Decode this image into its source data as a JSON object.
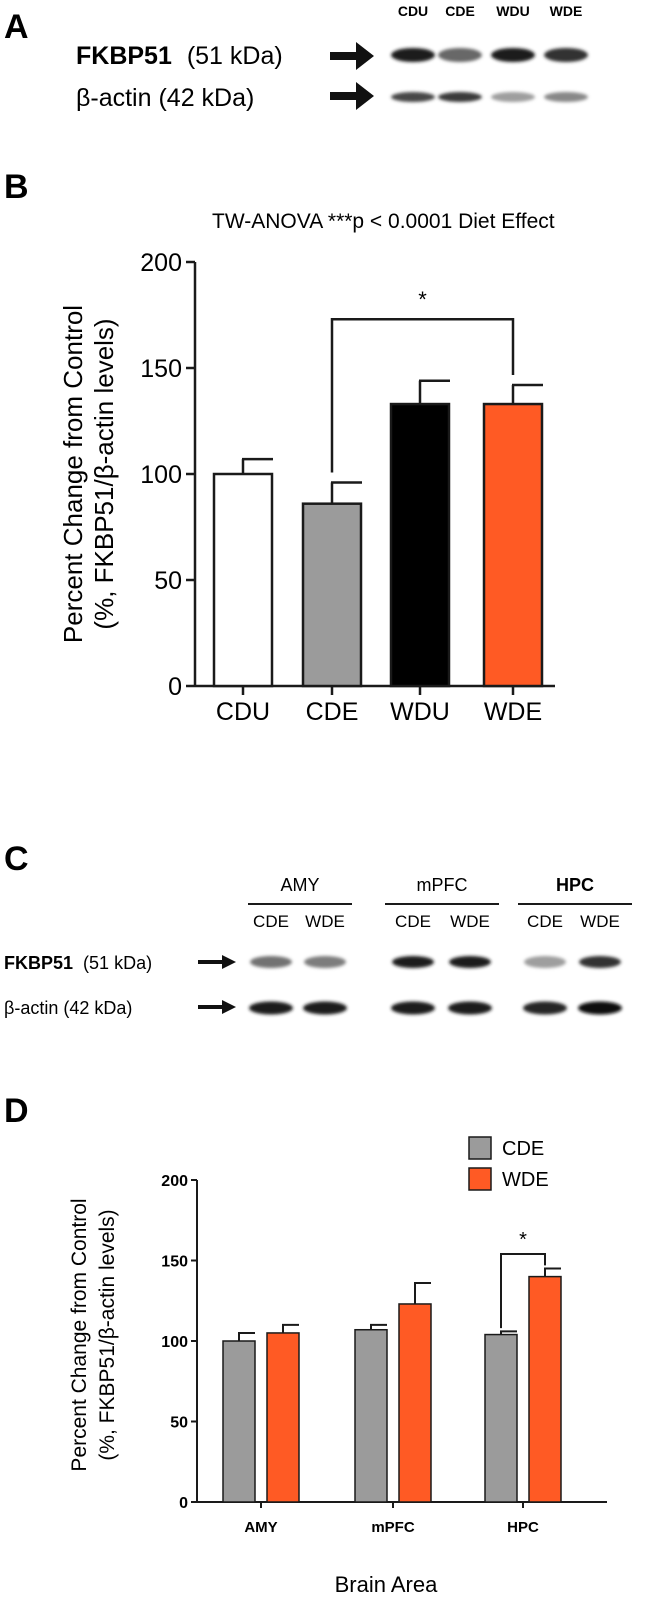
{
  "panels": {
    "A": {
      "letter": "A",
      "lanes": [
        "CDU",
        "CDE",
        "WDU",
        "WDE"
      ],
      "rows": [
        {
          "protein": "FKBP51",
          "size": "(51 kDa)",
          "bold": true,
          "band_intensity": [
            0.95,
            0.6,
            0.95,
            0.85
          ]
        },
        {
          "protein": "β-actin (42 kDa)",
          "size": "",
          "bold": false,
          "band_intensity": [
            0.75,
            0.8,
            0.35,
            0.45
          ]
        }
      ]
    },
    "B": {
      "letter": "B",
      "stat_note": "TW-ANOVA ***p < 0.0001 Diet Effect",
      "significance": {
        "from": "CDE",
        "to": "WDE",
        "label": "*"
      }
    },
    "C": {
      "letter": "C",
      "groups": [
        {
          "name": "AMY",
          "bold": false,
          "lanes": [
            "CDE",
            "WDE"
          ],
          "fkbp_intensity": [
            0.55,
            0.5
          ],
          "actin_intensity": [
            0.95,
            0.95
          ]
        },
        {
          "name": "mPFC",
          "bold": false,
          "lanes": [
            "CDE",
            "WDE"
          ],
          "fkbp_intensity": [
            0.95,
            0.95
          ],
          "actin_intensity": [
            0.95,
            0.95
          ]
        },
        {
          "name": "HPC",
          "bold": true,
          "lanes": [
            "CDE",
            "WDE"
          ],
          "fkbp_intensity": [
            0.35,
            0.85
          ],
          "actin_intensity": [
            0.9,
            1.0
          ]
        }
      ],
      "rows": [
        {
          "protein": "FKBP51",
          "size": "(51 kDa)",
          "bold": true
        },
        {
          "protein": "β-actin (42 kDa)",
          "size": "",
          "bold": false
        }
      ]
    },
    "D": {
      "letter": "D",
      "significance": {
        "group": "HPC",
        "label": "*"
      }
    }
  },
  "colors": {
    "CDU": "#ffffff",
    "CDE": "#9b9b9b",
    "WDU": "#000000",
    "WDE": "#ff5a24",
    "axis": "#1a1a1a"
  },
  "chart_data": [
    {
      "type": "bar",
      "panel": "B",
      "title": "TW-ANOVA ***p < 0.0001 Diet Effect",
      "categories": [
        "CDU",
        "CDE",
        "WDU",
        "WDE"
      ],
      "values": [
        100,
        86,
        133,
        133
      ],
      "errors": [
        7,
        10,
        11,
        9
      ],
      "bar_colors": [
        "#ffffff",
        "#9b9b9b",
        "#000000",
        "#ff5a24"
      ],
      "xlabel": "",
      "ylabel": [
        "Percent Change from Control",
        "(%, FKBP51/β-actin levels)"
      ],
      "ylim": [
        0,
        200
      ],
      "yticks": [
        0,
        50,
        100,
        150,
        200
      ],
      "grid": false,
      "legend": "none"
    },
    {
      "type": "bar",
      "panel": "D",
      "categories": [
        "AMY",
        "mPFC",
        "HPC"
      ],
      "series": [
        {
          "name": "CDE",
          "color": "#9b9b9b",
          "values": [
            100,
            107,
            104
          ],
          "errors": [
            5,
            3,
            2
          ]
        },
        {
          "name": "WDE",
          "color": "#ff5a24",
          "values": [
            105,
            123,
            140
          ],
          "errors": [
            5,
            13,
            5
          ]
        }
      ],
      "xlabel": "Brain Area",
      "ylabel": [
        "Percent Change from Control",
        "(%, FKBP51/β-actin levels)"
      ],
      "ylim": [
        0,
        200
      ],
      "yticks": [
        0,
        50,
        100,
        150,
        200
      ],
      "grid": false,
      "legend": "top-right"
    }
  ]
}
